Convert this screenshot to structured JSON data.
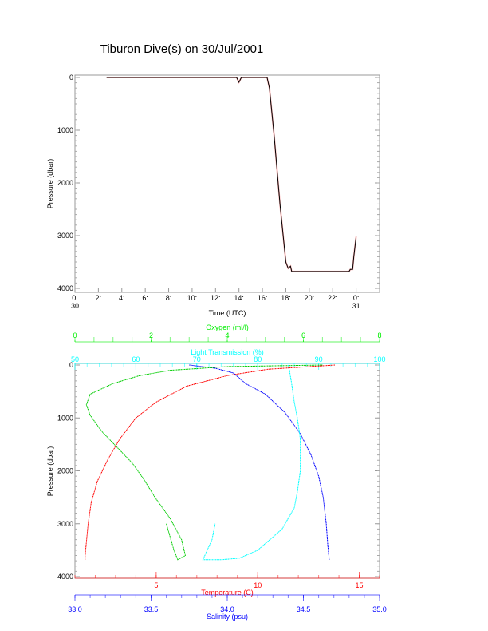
{
  "chart_data": [
    {
      "type": "line",
      "title": "Tiburon Dive(s) on 30/Jul/2001",
      "xlabel": "Time (UTC)",
      "ylabel": "Pressure (dbar)",
      "xlim": [
        0,
        26
      ],
      "ylim": [
        4000,
        0
      ],
      "xticks": [
        {
          "v": 0,
          "l": "0:",
          "l2": "30"
        },
        {
          "v": 2,
          "l": "2:"
        },
        {
          "v": 4,
          "l": "4:"
        },
        {
          "v": 6,
          "l": "6:"
        },
        {
          "v": 8,
          "l": "8:"
        },
        {
          "v": 10,
          "l": "10:"
        },
        {
          "v": 12,
          "l": "12:"
        },
        {
          "v": 14,
          "l": "14:"
        },
        {
          "v": 16,
          "l": "16:"
        },
        {
          "v": 18,
          "l": "18:"
        },
        {
          "v": 20,
          "l": "20:"
        },
        {
          "v": 22,
          "l": "22:"
        },
        {
          "v": 24,
          "l": "0:",
          "l2": "31"
        }
      ],
      "yticks": [
        0,
        1000,
        2000,
        3000,
        4000
      ],
      "series": [
        {
          "color": "#000000",
          "x": [
            2.7,
            13.8,
            14.0,
            14.2,
            16.4,
            16.6,
            17.0,
            17.5,
            18.0,
            18.2,
            18.4,
            18.5,
            23.4,
            23.5,
            23.7,
            23.8,
            24.0
          ],
          "y": [
            0,
            0,
            90,
            0,
            0,
            200,
            1100,
            2400,
            3500,
            3620,
            3580,
            3680,
            3680,
            3640,
            3640,
            3400,
            3020
          ]
        }
      ]
    },
    {
      "type": "line",
      "ylabel": "Pressure (dbar)",
      "ylim": [
        4000,
        0
      ],
      "yticks": [
        0,
        1000,
        2000,
        3000,
        4000
      ],
      "axes": {
        "oxygen": {
          "label": "Oxygen (ml/l)",
          "range": [
            0,
            8
          ],
          "ticks": [
            0,
            2,
            4,
            6,
            8
          ],
          "color": "#00ee00"
        },
        "light": {
          "label": "Light Transmission (%)",
          "range": [
            50,
            100
          ],
          "ticks": [
            50,
            60,
            70,
            80,
            90,
            100
          ],
          "color": "#00ffff"
        },
        "temperature": {
          "label": "Temperature (C)",
          "range": [
            1,
            16
          ],
          "ticks": [
            5,
            10,
            15
          ],
          "color": "#ff0000"
        },
        "salinity": {
          "label": "Salinity (psu)",
          "range": [
            33.0,
            35.0
          ],
          "ticks": [
            "33.0",
            "33.5",
            "34.0",
            "34.5",
            "35.0"
          ],
          "color": "#0000ff"
        }
      },
      "series": [
        {
          "axis": "temperature",
          "color": "#ff0000",
          "x": [
            13.8,
            10.5,
            8.5,
            6.5,
            5.0,
            4.0,
            3.2,
            2.6,
            2.1,
            1.8,
            1.65,
            1.55,
            1.5,
            1.5
          ],
          "y": [
            0,
            80,
            200,
            400,
            700,
            1000,
            1400,
            1800,
            2200,
            2600,
            3000,
            3400,
            3600,
            3680
          ]
        },
        {
          "axis": "salinity",
          "color": "#0000ff",
          "x": [
            33.75,
            33.92,
            34.04,
            34.12,
            34.25,
            34.38,
            34.48,
            34.55,
            34.6,
            34.63,
            34.65,
            34.66,
            34.67
          ],
          "y": [
            0,
            60,
            150,
            350,
            550,
            900,
            1300,
            1700,
            2100,
            2500,
            3000,
            3400,
            3680
          ]
        },
        {
          "axis": "oxygen",
          "color": "#00cc00",
          "x": [
            6.5,
            4.0,
            2.5,
            1.7,
            1.0,
            0.4,
            0.3,
            0.4,
            0.7,
            1.1,
            1.5,
            1.8,
            2.1,
            2.5,
            2.8,
            2.9,
            2.7,
            2.6,
            2.4
          ],
          "y": [
            0,
            30,
            100,
            200,
            350,
            550,
            750,
            950,
            1250,
            1550,
            1850,
            2150,
            2500,
            2900,
            3300,
            3600,
            3680,
            3500,
            3000
          ]
        },
        {
          "axis": "light",
          "color": "#00ffff",
          "x": [
            85,
            85.2,
            85.5,
            86,
            86.5,
            87,
            87,
            86.5,
            86,
            85,
            84,
            82,
            80,
            77,
            74,
            71,
            72.5,
            73
          ],
          "y": [
            0,
            100,
            300,
            700,
            1000,
            1400,
            2000,
            2400,
            2700,
            2900,
            3100,
            3300,
            3500,
            3650,
            3680,
            3680,
            3300,
            3000
          ]
        }
      ]
    }
  ]
}
